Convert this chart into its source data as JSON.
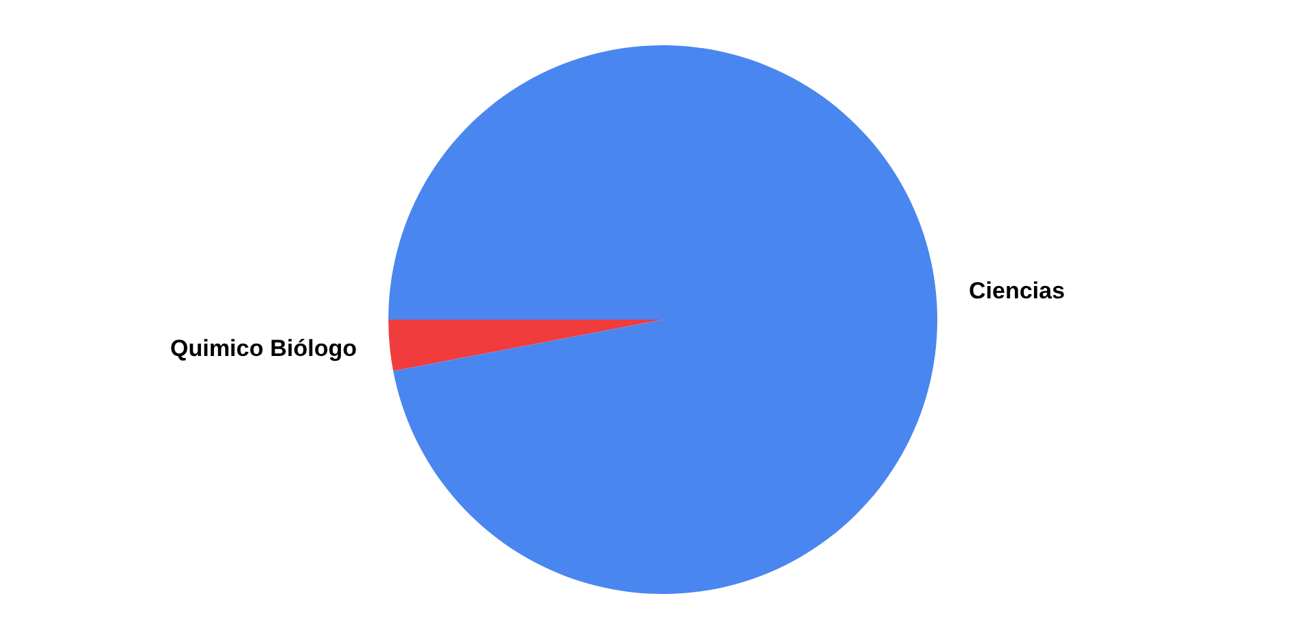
{
  "chart_data": {
    "type": "pie",
    "categories": [
      "Quimico Biólogo",
      "Ciencias"
    ],
    "values": [
      3,
      97
    ],
    "colors": [
      "#f03c3c",
      "#4a86f0"
    ],
    "legend": false
  }
}
